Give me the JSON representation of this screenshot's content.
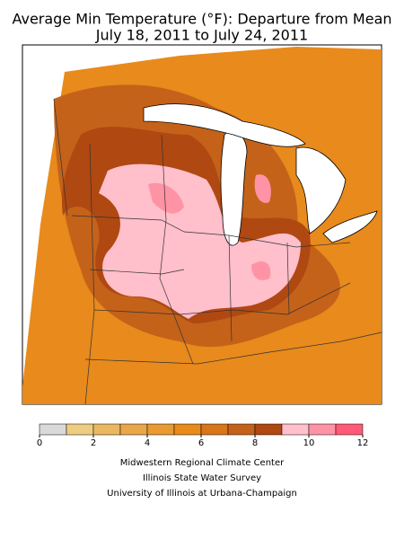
{
  "header": {
    "title": "Average Min Temperature (°F): Departure from Mean",
    "subtitle": "July 18, 2011 to July 24, 2011"
  },
  "legend": {
    "bins": [
      0,
      1,
      2,
      3,
      4,
      5,
      6,
      7,
      8,
      9,
      10,
      11,
      12
    ],
    "colors": [
      "#d9d9d9",
      "#edcd80",
      "#ebb862",
      "#eaa74a",
      "#e99a32",
      "#e88a1c",
      "#d8761a",
      "#c4621a",
      "#b04812",
      "#ffbfcb",
      "#ff93a6",
      "#ff5a76"
    ],
    "ticks": [
      0,
      2,
      4,
      6,
      8,
      10,
      12
    ]
  },
  "credits": [
    "Midwestern Regional Climate Center",
    "Illinois State Water Survey",
    "University of Illinois at Urbana-Champaign"
  ]
}
